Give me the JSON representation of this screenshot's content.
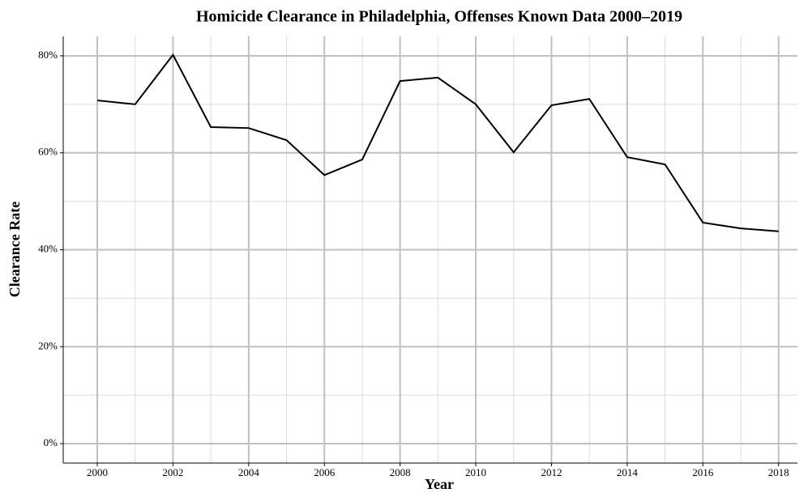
{
  "chart_data": {
    "type": "line",
    "title": "Homicide Clearance in Philadelphia, Offenses Known Data 2000–2019",
    "x_label": "Year",
    "y_label": "Clearance Rate",
    "x": [
      2000,
      2001,
      2002,
      2003,
      2004,
      2005,
      2006,
      2007,
      2008,
      2009,
      2010,
      2011,
      2012,
      2013,
      2014,
      2015,
      2016,
      2017,
      2018
    ],
    "series": [
      {
        "color": "#000000",
        "values": [
          70.8,
          70.0,
          80.2,
          65.3,
          65.1,
          62.6,
          55.4,
          58.6,
          74.8,
          75.5,
          70.0,
          60.1,
          69.8,
          71.1,
          59.1,
          57.6,
          45.6,
          44.4,
          43.8
        ]
      }
    ],
    "xlim": [
      1999.1,
      2018.5
    ],
    "xticks": [
      2000,
      2002,
      2004,
      2006,
      2008,
      2010,
      2012,
      2014,
      2016,
      2018
    ],
    "ylim": [
      -4,
      84
    ],
    "yticks": [
      {
        "value": 0,
        "label": "0%"
      },
      {
        "value": 20,
        "label": "20%"
      },
      {
        "value": 40,
        "label": "40%"
      },
      {
        "value": 60,
        "label": "60%"
      },
      {
        "value": 80,
        "label": "80%"
      }
    ],
    "grid": true
  }
}
